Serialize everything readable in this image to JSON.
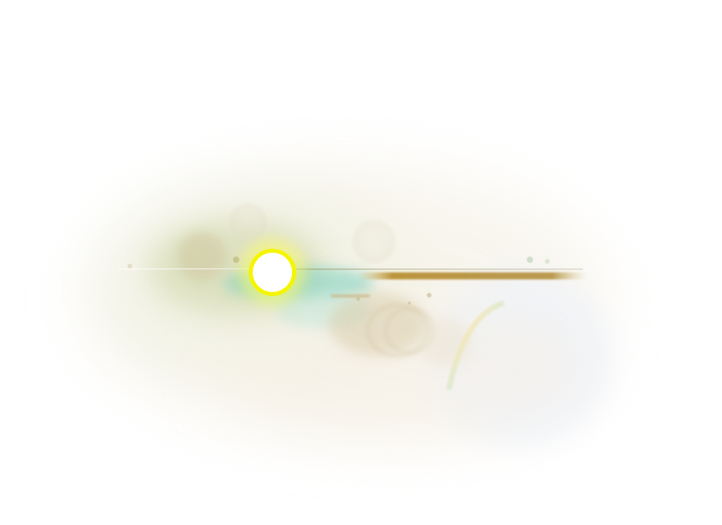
{
  "scene": {
    "subject": "lens-flare",
    "colors": {
      "background": "#ffffff",
      "core": "#ffffff",
      "core_ring": "#ffff00",
      "halo": "#f4efe2",
      "teal_glow": "#7fcfc0",
      "olive_glow": "#b9c48a",
      "streak": "#b58a2a",
      "prism_blue": "#cfe6f6",
      "prism_pink": "#f6d6e6"
    },
    "icons": [
      "light-source-icon",
      "lens-ghost-icon"
    ]
  }
}
